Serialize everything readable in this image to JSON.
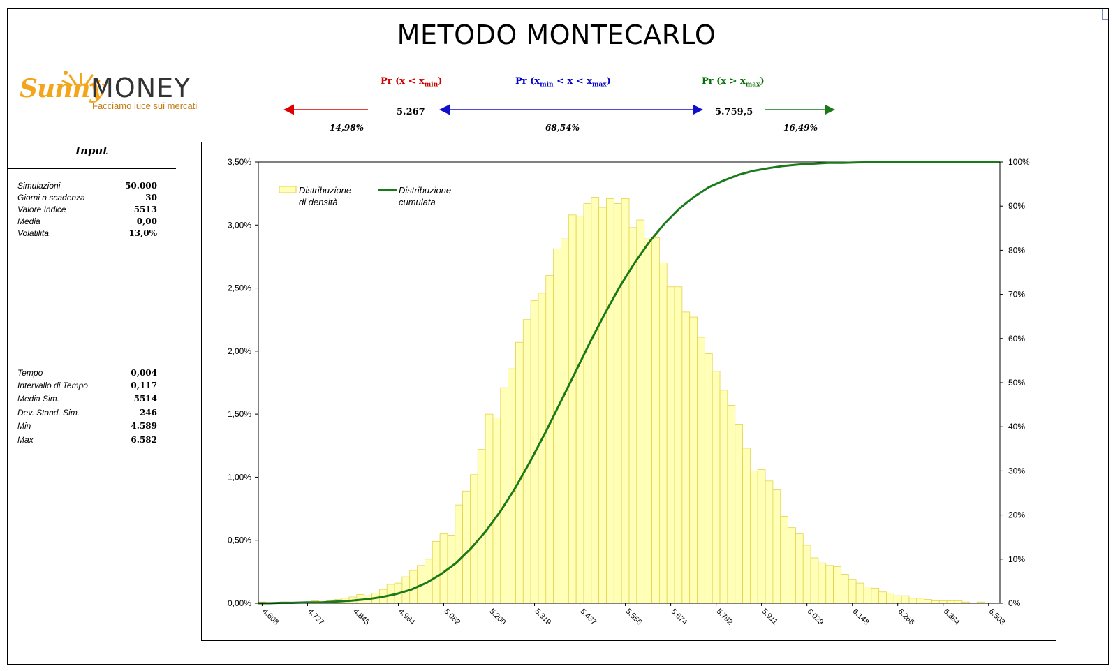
{
  "title": "METODO MONTECARLO",
  "logo": {
    "brand_script": "Sunny",
    "brand_word": "MONEY",
    "tagline": "Facciamo luce sui mercati"
  },
  "probabilities": {
    "left": {
      "label_pre": "Pr (x < x",
      "label_sub": "min",
      "label_post": ")",
      "value": "5.267",
      "pct": "14,98%",
      "color": "#cc0000"
    },
    "middle": {
      "label_pre": "Pr (x",
      "label_sub1": "min",
      "label_mid": " < x < x",
      "label_sub2": "max",
      "label_post": ")",
      "pct": "68,54%",
      "color": "#0000cc"
    },
    "right": {
      "label_pre": "Pr (x > x",
      "label_sub": "max",
      "label_post": ")",
      "value": "5.759,5",
      "pct": "16,49%",
      "color": "#007000"
    }
  },
  "input": {
    "title": "Input",
    "rows": [
      {
        "key": "Simulazioni",
        "value": "50.000"
      },
      {
        "key": "Giorni a scadenza",
        "value": "30"
      },
      {
        "key": "Valore Indice",
        "value": "5513"
      },
      {
        "key": "Media",
        "value": "0,00"
      },
      {
        "key": "Volatilità",
        "value": "13,0%"
      }
    ]
  },
  "results": {
    "rows": [
      {
        "key": "Tempo",
        "value": "0,004"
      },
      {
        "key": "Intervallo di Tempo",
        "value": "0,117"
      },
      {
        "key": "Media Sim.",
        "value": "5514"
      },
      {
        "key": "Dev. Stand. Sim.",
        "value": "246"
      },
      {
        "key": "Min",
        "value": "4.589"
      },
      {
        "key": "Max",
        "value": "6.582"
      }
    ]
  },
  "colors": {
    "bar_fill": "#ffffb8",
    "bar_stroke": "#e6d24a",
    "line": "#1a7a1a",
    "red_arrow": "#dd0000",
    "blue_arrow": "#1010cc",
    "green_arrow": "#1a7a1a"
  },
  "chart_data": {
    "type": "bar",
    "legend": [
      {
        "name": "Distribuzione di densità",
        "line1": "Distribuzione",
        "line2": "di densità",
        "kind": "bar"
      },
      {
        "name": "Distribuzione cumulata",
        "line1": "Distribuzione",
        "line2": "cumulata",
        "kind": "line"
      }
    ],
    "legend_position": "top-left",
    "x_tick_labels": [
      "4.608",
      "4.727",
      "4.845",
      "4.964",
      "5.082",
      "5.200",
      "5.319",
      "5.437",
      "5.556",
      "5.674",
      "5.792",
      "5.911",
      "6.029",
      "6.148",
      "6.266",
      "6.384",
      "6.503"
    ],
    "x_range": [
      4.589,
      6.582
    ],
    "y_left_ticks": [
      "0,00%",
      "0,50%",
      "1,00%",
      "1,50%",
      "2,00%",
      "2,50%",
      "3,00%",
      "3,50%"
    ],
    "y_left_range": [
      0,
      3.5
    ],
    "y_right_ticks": [
      "0%",
      "10%",
      "20%",
      "30%",
      "40%",
      "50%",
      "60%",
      "70%",
      "80%",
      "90%",
      "100%"
    ],
    "y_right_range": [
      0,
      100
    ],
    "series": [
      {
        "name": "Distribuzione di densità",
        "type": "bar",
        "unit": "%",
        "values": [
          0.01,
          0.0,
          0.0,
          0.01,
          0.0,
          0.01,
          0.01,
          0.02,
          0.01,
          0.02,
          0.03,
          0.04,
          0.05,
          0.07,
          0.06,
          0.08,
          0.11,
          0.15,
          0.16,
          0.21,
          0.26,
          0.3,
          0.35,
          0.49,
          0.55,
          0.54,
          0.78,
          0.89,
          1.02,
          1.22,
          1.5,
          1.47,
          1.71,
          1.86,
          2.07,
          2.25,
          2.4,
          2.46,
          2.6,
          2.81,
          2.89,
          3.08,
          3.07,
          3.17,
          3.22,
          3.14,
          3.21,
          3.17,
          3.21,
          2.98,
          3.04,
          2.89,
          2.9,
          2.7,
          2.51,
          2.51,
          2.31,
          2.27,
          2.11,
          1.98,
          1.84,
          1.69,
          1.57,
          1.42,
          1.23,
          1.05,
          1.06,
          0.97,
          0.9,
          0.69,
          0.6,
          0.55,
          0.46,
          0.36,
          0.32,
          0.3,
          0.29,
          0.23,
          0.19,
          0.16,
          0.13,
          0.12,
          0.09,
          0.08,
          0.06,
          0.06,
          0.04,
          0.04,
          0.03,
          0.02,
          0.02,
          0.02,
          0.02,
          0.01,
          0.0,
          0.01,
          0.0,
          0.0
        ]
      },
      {
        "name": "Distribuzione cumulata",
        "type": "line",
        "unit": "%",
        "x": [
          4.589,
          4.62,
          4.65,
          4.68,
          4.72,
          4.76,
          4.8,
          4.84,
          4.88,
          4.92,
          4.96,
          5.0,
          5.04,
          5.08,
          5.12,
          5.16,
          5.2,
          5.24,
          5.28,
          5.32,
          5.36,
          5.4,
          5.44,
          5.48,
          5.52,
          5.56,
          5.6,
          5.64,
          5.68,
          5.72,
          5.76,
          5.8,
          5.84,
          5.88,
          5.92,
          5.96,
          6.0,
          6.04,
          6.08,
          6.12,
          6.16,
          6.2,
          6.26,
          6.34,
          6.42,
          6.5,
          6.582
        ],
        "values": [
          0.0,
          0.0,
          0.1,
          0.1,
          0.2,
          0.2,
          0.4,
          0.6,
          0.9,
          1.4,
          2.1,
          3.1,
          4.6,
          6.6,
          9.1,
          12.4,
          16.3,
          20.9,
          26.2,
          32.2,
          38.6,
          45.4,
          52.2,
          59.1,
          65.6,
          71.7,
          77.1,
          81.9,
          86.0,
          89.4,
          92.1,
          94.3,
          95.8,
          97.1,
          98.0,
          98.6,
          99.1,
          99.4,
          99.6,
          99.8,
          99.8,
          99.9,
          100.0,
          100.0,
          100.0,
          100.0,
          100.0
        ]
      }
    ]
  }
}
